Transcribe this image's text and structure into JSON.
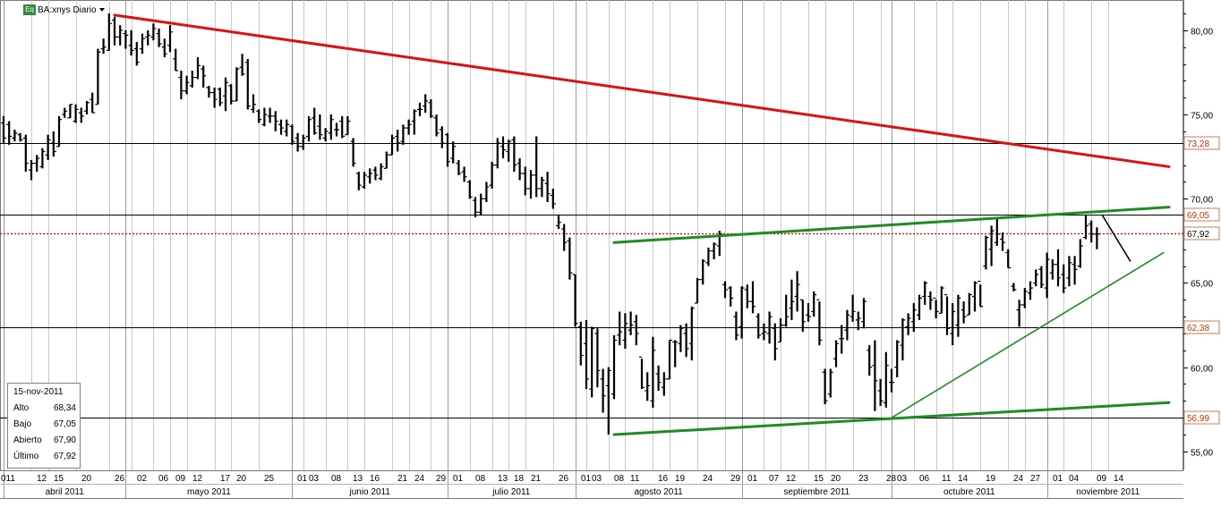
{
  "header": {
    "symbol": "BA:xnys Diario"
  },
  "info_box": {
    "date": "15-nov-2011",
    "rows": [
      {
        "label": "Alto",
        "value": "68,34"
      },
      {
        "label": "Bajo",
        "value": "67,05"
      },
      {
        "label": "Abierto",
        "value": "67,90"
      },
      {
        "label": "Último",
        "value": "67,92"
      }
    ]
  },
  "colors": {
    "resistance": "#dd1111",
    "channel": "#1f8c1f",
    "price": "#000000",
    "tag_text": "#cc3300",
    "last_price": "#cc0000",
    "grid": "#c8c8c8"
  },
  "chart_data": {
    "type": "ohlc",
    "title": "BA:xnys Diario",
    "ylim": [
      53.8,
      81.7
    ],
    "y_ticks": [
      "55,00",
      "60,00",
      "65,00",
      "70,00",
      "75,00",
      "80,00"
    ],
    "y_tick_values": [
      55,
      60,
      65,
      70,
      75,
      80
    ],
    "day_labels": [
      "011",
      "12",
      "15",
      "20",
      "26",
      "02",
      "06",
      "09",
      "12",
      "17",
      "20",
      "25",
      "01",
      "03",
      "08",
      "13",
      "16",
      "21",
      "24",
      "29",
      "01",
      "08",
      "13",
      "18",
      "21",
      "26",
      "01",
      "03",
      "08",
      "11",
      "16",
      "19",
      "24",
      "29",
      "01",
      "07",
      "12",
      "15",
      "20",
      "23",
      "28",
      "03",
      "06",
      "11",
      "14",
      "19",
      "24",
      "27",
      "01",
      "04",
      "09",
      "14"
    ],
    "day_label_index": [
      0,
      5,
      8,
      13,
      19,
      23,
      27,
      30,
      33,
      38,
      41,
      46,
      52,
      54,
      58,
      62,
      65,
      70,
      73,
      77,
      80,
      84,
      88,
      91,
      94,
      99,
      103,
      105,
      109,
      112,
      117,
      120,
      125,
      130,
      133,
      137,
      140,
      145,
      148,
      153,
      158,
      160,
      164,
      168,
      171,
      176,
      181,
      184,
      188,
      191,
      196,
      199
    ],
    "months": [
      {
        "label": "abril 2011",
        "start": 0,
        "end": 22
      },
      {
        "label": "mayo 2011",
        "start": 22,
        "end": 52
      },
      {
        "label": "junio 2011",
        "start": 52,
        "end": 80
      },
      {
        "label": "julio 2011",
        "start": 80,
        "end": 103
      },
      {
        "label": "agosto 2011",
        "start": 103,
        "end": 133
      },
      {
        "label": "septiembre 2011",
        "start": 133,
        "end": 160
      },
      {
        "label": "octubre 2011",
        "start": 160,
        "end": 188
      },
      {
        "label": "noviembre 2011",
        "start": 188,
        "end": 210
      }
    ],
    "horizontal_levels": [
      {
        "value": 73.28,
        "label": "73,28",
        "style": "solid"
      },
      {
        "value": 69.05,
        "label": "69,05",
        "style": "solid"
      },
      {
        "value": 67.92,
        "label": "67,92",
        "style": "dotted"
      },
      {
        "value": 62.38,
        "label": "62,38",
        "style": "solid"
      },
      {
        "value": 56.99,
        "label": "56,99",
        "style": "solid"
      }
    ],
    "trendlines": [
      {
        "name": "resistance",
        "color": "red",
        "from": [
          20,
          80.9
        ],
        "to": [
          210,
          71.9
        ]
      },
      {
        "name": "channel-top",
        "color": "green",
        "from": [
          110,
          67.4
        ],
        "to": [
          210,
          69.5
        ]
      },
      {
        "name": "channel-bottom",
        "color": "green",
        "from": [
          110,
          56.0
        ],
        "to": [
          210,
          57.9
        ]
      },
      {
        "name": "uptrend",
        "color": "green",
        "from": [
          160,
          57.0
        ],
        "to": [
          209,
          66.8
        ]
      },
      {
        "name": "projection",
        "color": "black",
        "from": [
          198,
          69.0
        ],
        "to": [
          203,
          66.3
        ]
      }
    ],
    "bars": [
      [
        74.9,
        73.3,
        74.5,
        73.6
      ],
      [
        74.6,
        73.2,
        74.4,
        73.7
      ],
      [
        74.1,
        73.4,
        73.6,
        73.9
      ],
      [
        73.9,
        73.4,
        73.8,
        73.5
      ],
      [
        73.8,
        71.6,
        73.6,
        72.1
      ],
      [
        72.3,
        71.1,
        71.7,
        72.1
      ],
      [
        72.6,
        71.6,
        72.1,
        72.4
      ],
      [
        73.0,
        71.8,
        71.9,
        72.8
      ],
      [
        73.8,
        72.3,
        72.6,
        73.5
      ],
      [
        74.0,
        72.5,
        73.3,
        72.8
      ],
      [
        74.9,
        73.1,
        73.1,
        74.7
      ],
      [
        75.4,
        74.8,
        75.0,
        75.2
      ],
      [
        75.6,
        74.8,
        74.8,
        75.6
      ],
      [
        75.6,
        74.5,
        74.6,
        75.3
      ],
      [
        75.4,
        74.5,
        75.1,
        74.9
      ],
      [
        75.8,
        75.0,
        75.2,
        75.7
      ],
      [
        76.3,
        75.1,
        75.9,
        75.1
      ],
      [
        78.9,
        75.6,
        75.6,
        78.7
      ],
      [
        79.5,
        78.6,
        78.9,
        79.0
      ],
      [
        81.0,
        78.8,
        78.8,
        80.4
      ],
      [
        80.8,
        79.1,
        80.6,
        79.6
      ],
      [
        80.3,
        79.1,
        79.6,
        80.0
      ],
      [
        80.0,
        78.9,
        79.8,
        79.7
      ],
      [
        80.0,
        78.5,
        79.1,
        78.8
      ],
      [
        79.3,
        77.9,
        78.9,
        78.1
      ],
      [
        79.8,
        78.6,
        78.9,
        79.5
      ],
      [
        80.0,
        79.1,
        79.6,
        79.7
      ],
      [
        80.4,
        79.4,
        79.6,
        80.1
      ],
      [
        80.1,
        79.0,
        79.8,
        79.2
      ],
      [
        79.5,
        78.4,
        79.0,
        78.6
      ],
      [
        80.3,
        78.7,
        79.1,
        79.9
      ],
      [
        78.9,
        77.6,
        78.3,
        77.6
      ],
      [
        77.6,
        75.9,
        77.2,
        76.4
      ],
      [
        77.3,
        76.2,
        76.4,
        76.9
      ],
      [
        77.6,
        76.6,
        76.7,
        77.2
      ],
      [
        78.4,
        77.1,
        77.2,
        77.9
      ],
      [
        77.9,
        76.6,
        77.7,
        77.3
      ],
      [
        76.7,
        76.0,
        76.6,
        76.3
      ],
      [
        76.6,
        75.4,
        76.3,
        75.9
      ],
      [
        76.6,
        75.5,
        76.5,
        75.7
      ],
      [
        77.2,
        75.2,
        76.1,
        76.9
      ],
      [
        76.8,
        75.6,
        76.7,
        75.8
      ],
      [
        77.8,
        75.8,
        75.8,
        77.7
      ],
      [
        78.6,
        77.3,
        77.8,
        77.4
      ],
      [
        78.3,
        75.3,
        78.1,
        75.5
      ],
      [
        76.2,
        75.1,
        75.3,
        75.6
      ],
      [
        75.3,
        74.5,
        75.2,
        74.7
      ],
      [
        75.4,
        74.3,
        74.4,
        75.0
      ],
      [
        75.4,
        74.5,
        74.9,
        74.9
      ],
      [
        75.2,
        74.0,
        74.9,
        74.6
      ],
      [
        74.7,
        73.8,
        74.4,
        74.2
      ],
      [
        74.7,
        73.7,
        74.0,
        74.4
      ],
      [
        74.4,
        73.2,
        74.3,
        73.4
      ],
      [
        73.9,
        72.8,
        73.6,
        73.1
      ],
      [
        73.8,
        72.9,
        73.1,
        73.6
      ],
      [
        74.9,
        73.4,
        73.7,
        74.7
      ],
      [
        75.4,
        73.8,
        74.8,
        73.9
      ],
      [
        75.0,
        73.5,
        74.3,
        73.8
      ],
      [
        74.2,
        73.4,
        73.6,
        74.0
      ],
      [
        75.0,
        73.5,
        73.9,
        74.7
      ],
      [
        74.5,
        73.7,
        74.1,
        74.1
      ],
      [
        74.9,
        73.6,
        74.6,
        73.7
      ],
      [
        74.9,
        73.8,
        73.8,
        74.6
      ],
      [
        73.6,
        71.9,
        73.4,
        72.1
      ],
      [
        71.6,
        70.5,
        71.5,
        70.8
      ],
      [
        71.6,
        70.6,
        70.7,
        71.4
      ],
      [
        71.8,
        70.9,
        71.3,
        71.5
      ],
      [
        71.9,
        71.1,
        71.7,
        71.4
      ],
      [
        72.1,
        71.1,
        71.2,
        71.9
      ],
      [
        72.8,
        71.8,
        71.8,
        72.6
      ],
      [
        73.8,
        72.6,
        72.6,
        73.6
      ],
      [
        74.1,
        72.8,
        73.7,
        73.3
      ],
      [
        74.4,
        73.2,
        73.4,
        74.2
      ],
      [
        74.7,
        73.8,
        74.2,
        74.4
      ],
      [
        75.3,
        73.8,
        74.6,
        75.2
      ],
      [
        75.7,
        74.9,
        75.3,
        75.3
      ],
      [
        76.2,
        75.1,
        75.5,
        75.8
      ],
      [
        75.9,
        74.8,
        75.7,
        74.9
      ],
      [
        75.0,
        73.7,
        74.8,
        73.9
      ],
      [
        74.3,
        73.0,
        74.1,
        73.3
      ],
      [
        73.9,
        71.9,
        73.8,
        72.2
      ],
      [
        73.4,
        72.1,
        72.4,
        73.1
      ],
      [
        72.3,
        71.4,
        72.1,
        71.5
      ],
      [
        71.9,
        71.0,
        71.6,
        71.3
      ],
      [
        71.1,
        70.0,
        71.0,
        70.1
      ],
      [
        70.1,
        68.9,
        69.9,
        69.2
      ],
      [
        70.3,
        69.0,
        69.2,
        70.0
      ],
      [
        71.0,
        69.8,
        70.0,
        70.7
      ],
      [
        72.2,
        70.6,
        70.8,
        72.0
      ],
      [
        73.6,
        71.8,
        72.0,
        73.3
      ],
      [
        73.7,
        72.4,
        73.1,
        72.9
      ],
      [
        73.5,
        72.2,
        72.8,
        73.4
      ],
      [
        73.7,
        71.6,
        73.5,
        72.0
      ],
      [
        72.4,
        71.1,
        72.1,
        71.5
      ],
      [
        71.9,
        70.2,
        71.5,
        70.6
      ],
      [
        71.7,
        70.0,
        70.6,
        71.4
      ],
      [
        73.7,
        70.1,
        71.4,
        70.6
      ],
      [
        71.3,
        70.1,
        70.6,
        71.1
      ],
      [
        71.6,
        69.8,
        70.9,
        70.3
      ],
      [
        70.6,
        69.4,
        70.2,
        69.7
      ],
      [
        69.0,
        68.2,
        68.4,
        68.6
      ],
      [
        68.5,
        66.9,
        68.2,
        67.4
      ],
      [
        67.7,
        65.2,
        67.5,
        65.6
      ],
      [
        65.5,
        62.4,
        65.5,
        62.6
      ],
      [
        62.7,
        60.1,
        62.4,
        60.7
      ],
      [
        62.8,
        58.7,
        61.4,
        59.3
      ],
      [
        62.4,
        58.2,
        58.7,
        62.3
      ],
      [
        62.3,
        58.8,
        62.0,
        59.8
      ],
      [
        59.9,
        57.3,
        59.3,
        58.3
      ],
      [
        60.0,
        56.0,
        58.9,
        59.8
      ],
      [
        61.9,
        58.1,
        58.4,
        61.6
      ],
      [
        63.3,
        61.3,
        61.9,
        62.1
      ],
      [
        63.2,
        61.1,
        61.6,
        62.6
      ],
      [
        63.3,
        61.9,
        62.2,
        62.5
      ],
      [
        63.1,
        61.3,
        62.7,
        62.0
      ],
      [
        60.5,
        58.7,
        60.6,
        58.8
      ],
      [
        59.7,
        58.0,
        58.6,
        58.9
      ],
      [
        61.8,
        57.6,
        58.0,
        61.0
      ],
      [
        60.1,
        58.6,
        59.6,
        59.1
      ],
      [
        59.7,
        58.3,
        58.8,
        59.3
      ],
      [
        61.6,
        59.3,
        59.3,
        61.6
      ],
      [
        61.6,
        60.0,
        61.5,
        61.5
      ],
      [
        62.5,
        60.9,
        61.4,
        62.3
      ],
      [
        62.6,
        60.6,
        62.0,
        61.1
      ],
      [
        63.6,
        60.4,
        61.4,
        63.5
      ],
      [
        65.3,
        63.8,
        63.8,
        65.2
      ],
      [
        66.4,
        64.9,
        65.2,
        66.3
      ],
      [
        67.1,
        66.0,
        66.2,
        66.9
      ],
      [
        67.4,
        66.4,
        66.9,
        67.3
      ],
      [
        68.1,
        66.6,
        67.2,
        67.9
      ],
      [
        65.1,
        64.1,
        64.9,
        64.6
      ],
      [
        64.8,
        63.6,
        64.7,
        64.1
      ],
      [
        63.3,
        61.6,
        63.0,
        61.9
      ],
      [
        64.8,
        61.7,
        62.4,
        64.7
      ],
      [
        64.9,
        63.5,
        64.6,
        63.9
      ],
      [
        65.1,
        63.2,
        63.9,
        63.6
      ],
      [
        63.2,
        61.7,
        63.0,
        61.9
      ],
      [
        62.6,
        61.6,
        62.0,
        62.1
      ],
      [
        63.3,
        61.4,
        62.0,
        63.0
      ],
      [
        62.6,
        60.4,
        62.3,
        61.1
      ],
      [
        62.9,
        61.5,
        61.5,
        62.5
      ],
      [
        64.3,
        62.4,
        62.5,
        63.0
      ],
      [
        65.2,
        62.8,
        63.5,
        63.9
      ],
      [
        65.7,
        63.3,
        64.2,
        64.9
      ],
      [
        64.0,
        62.1,
        64.0,
        62.7
      ],
      [
        63.8,
        62.7,
        63.1,
        63.0
      ],
      [
        64.5,
        63.0,
        63.3,
        64.3
      ],
      [
        63.9,
        61.3,
        64.0,
        61.6
      ],
      [
        59.9,
        57.8,
        59.7,
        58.0
      ],
      [
        59.9,
        58.2,
        58.4,
        59.7
      ],
      [
        61.6,
        60.0,
        60.5,
        61.4
      ],
      [
        62.5,
        60.8,
        61.7,
        61.7
      ],
      [
        63.4,
        61.6,
        62.2,
        63.1
      ],
      [
        64.3,
        62.7,
        63.0,
        63.3
      ],
      [
        63.3,
        62.2,
        62.8,
        62.9
      ],
      [
        64.1,
        62.3,
        62.7,
        63.9
      ],
      [
        61.3,
        59.5,
        61.0,
        60.0
      ],
      [
        61.6,
        57.4,
        60.1,
        59.2
      ],
      [
        59.3,
        57.7,
        58.6,
        58.0
      ],
      [
        60.9,
        57.6,
        57.9,
        60.1
      ],
      [
        59.9,
        58.5,
        59.1,
        59.1
      ],
      [
        61.6,
        59.4,
        60.0,
        61.5
      ],
      [
        62.9,
        60.4,
        61.3,
        62.8
      ],
      [
        63.2,
        61.9,
        62.4,
        62.9
      ],
      [
        63.8,
        62.1,
        62.7,
        63.4
      ],
      [
        64.3,
        62.8,
        63.1,
        64.1
      ],
      [
        65.1,
        63.7,
        64.2,
        65.0
      ],
      [
        64.5,
        63.4,
        64.2,
        64.0
      ],
      [
        64.0,
        62.9,
        64.1,
        63.3
      ],
      [
        64.8,
        63.2,
        63.2,
        64.7
      ],
      [
        64.2,
        61.9,
        64.3,
        62.3
      ],
      [
        63.8,
        61.3,
        62.0,
        63.3
      ],
      [
        64.3,
        61.8,
        62.5,
        64.1
      ],
      [
        63.9,
        62.6,
        63.4,
        63.0
      ],
      [
        64.4,
        63.1,
        63.1,
        64.3
      ],
      [
        65.1,
        63.3,
        64.2,
        65.0
      ],
      [
        64.9,
        63.6,
        65.1,
        63.6
      ],
      [
        67.8,
        65.8,
        66.0,
        67.7
      ],
      [
        68.4,
        66.0,
        67.0,
        68.1
      ],
      [
        68.8,
        67.2,
        67.4,
        67.9
      ],
      [
        68.0,
        66.9,
        67.6,
        67.4
      ],
      [
        67.0,
        65.9,
        66.8,
        65.9
      ],
      [
        65.0,
        64.5,
        64.8,
        64.6
      ],
      [
        64.0,
        62.4,
        63.4,
        63.7
      ],
      [
        64.7,
        63.5,
        63.7,
        64.5
      ],
      [
        65.1,
        64.0,
        64.4,
        64.7
      ],
      [
        65.8,
        64.8,
        65.0,
        65.5
      ],
      [
        66.0,
        64.7,
        65.8,
        64.9
      ],
      [
        66.8,
        64.1,
        64.7,
        66.4
      ],
      [
        66.4,
        65.2,
        65.6,
        66.1
      ],
      [
        67.0,
        64.8,
        66.1,
        65.3
      ],
      [
        66.1,
        64.4,
        65.5,
        64.7
      ],
      [
        66.6,
        64.8,
        65.3,
        66.2
      ],
      [
        66.6,
        64.9,
        66.1,
        65.8
      ],
      [
        67.6,
        65.9,
        66.0,
        67.2
      ],
      [
        69.0,
        67.6,
        67.7,
        68.4
      ],
      [
        68.7,
        67.4,
        68.5,
        67.9
      ],
      [
        68.3,
        67.0,
        67.9,
        67.9
      ]
    ]
  }
}
